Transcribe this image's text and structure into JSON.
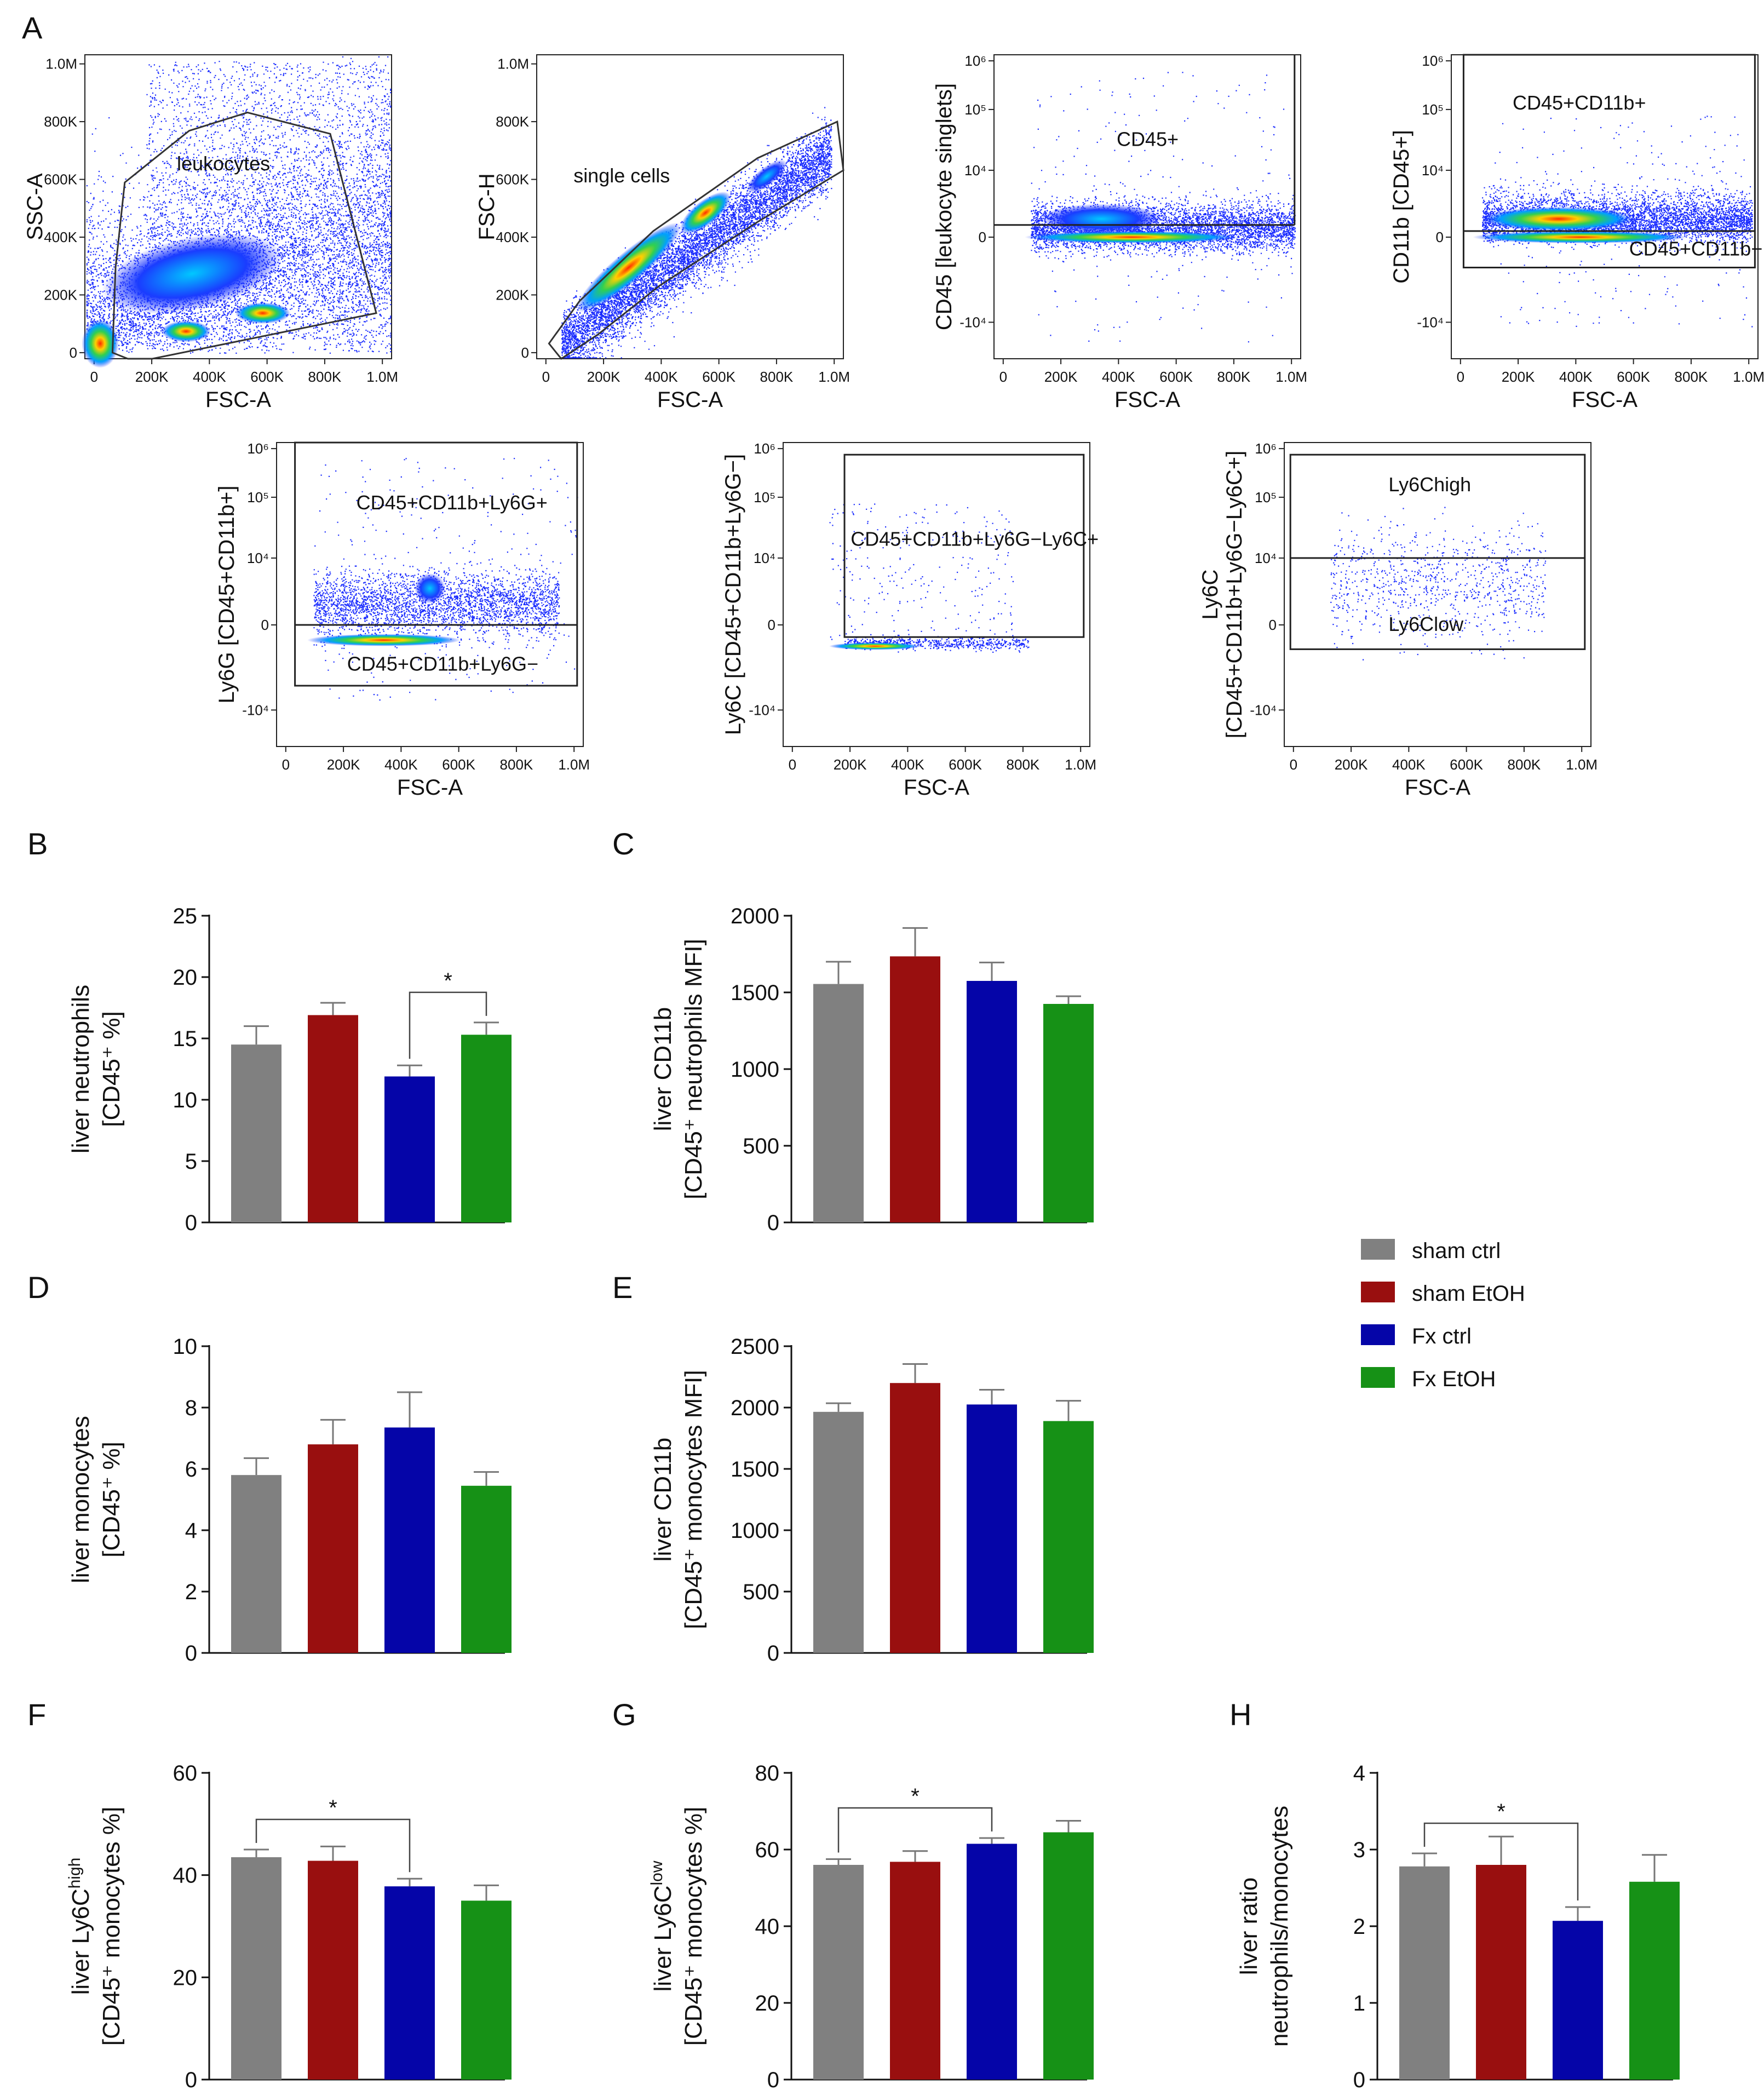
{
  "panel_labels": [
    "A",
    "B",
    "C",
    "D",
    "E",
    "F",
    "G",
    "H"
  ],
  "flow_plots": [
    {
      "id": "p1",
      "ylabel": [
        "SSC-A"
      ],
      "xlabel": "FSC-A",
      "yscale": "linear",
      "yticks": [
        "0",
        "200K",
        "400K",
        "600K",
        "800K",
        "1.0M"
      ],
      "xticks": [
        "0",
        "200K",
        "400K",
        "600K",
        "800K",
        "1.0M"
      ],
      "gates": [
        {
          "name": "leukocytes"
        }
      ]
    },
    {
      "id": "p2",
      "ylabel": [
        "FSC-H"
      ],
      "xlabel": "FSC-A",
      "yscale": "linear",
      "yticks": [
        "0",
        "200K",
        "400K",
        "600K",
        "800K",
        "1.0M"
      ],
      "xticks": [
        "0",
        "200K",
        "400K",
        "600K",
        "800K",
        "1.0M"
      ],
      "gates": [
        {
          "name": "single cells"
        }
      ]
    },
    {
      "id": "p3",
      "ylabel": [
        "CD45 [leukocyte singlets]"
      ],
      "xlabel": "FSC-A",
      "yscale": "log",
      "yticks": [
        "-10⁴",
        "0",
        "10⁴",
        "10⁵",
        "10⁶"
      ],
      "xticks": [
        "0",
        "200K",
        "400K",
        "600K",
        "800K",
        "1.0M"
      ],
      "gates": [
        {
          "name": "CD45+"
        }
      ]
    },
    {
      "id": "p4",
      "ylabel": [
        "CD11b [CD45+]"
      ],
      "xlabel": "FSC-A",
      "yscale": "log",
      "yticks": [
        "-10⁴",
        "0",
        "10⁴",
        "10⁵",
        "10⁶"
      ],
      "xticks": [
        "0",
        "200K",
        "400K",
        "600K",
        "800K",
        "1.0M"
      ],
      "gates": [
        {
          "name": "CD45+CD11b+"
        },
        {
          "name": "CD45+CD11b−"
        }
      ]
    },
    {
      "id": "p5",
      "ylabel": [
        "Ly6G [CD45+CD11b+]"
      ],
      "xlabel": "FSC-A",
      "yscale": "log",
      "yticks": [
        "-10⁴",
        "0",
        "10⁴",
        "10⁵",
        "10⁶"
      ],
      "xticks": [
        "0",
        "200K",
        "400K",
        "600K",
        "800K",
        "1.0M"
      ],
      "gates": [
        {
          "name": "CD45+CD11b+Ly6G+"
        },
        {
          "name": "CD45+CD11b+Ly6G−"
        }
      ]
    },
    {
      "id": "p6",
      "ylabel": [
        "Ly6C [CD45+CD11b+Ly6G−]"
      ],
      "xlabel": "FSC-A",
      "yscale": "log",
      "yticks": [
        "-10⁴",
        "0",
        "10⁴",
        "10⁵",
        "10⁶"
      ],
      "xticks": [
        "0",
        "200K",
        "400K",
        "600K",
        "800K",
        "1.0M"
      ],
      "gates": [
        {
          "name": "CD45+CD11b+Ly6G−Ly6C+"
        }
      ]
    },
    {
      "id": "p7",
      "ylabel": [
        "Ly6C",
        "[CD45+CD11b+Ly6G−Ly6C+]"
      ],
      "xlabel": "FSC-A",
      "yscale": "log",
      "yticks": [
        "-10⁴",
        "0",
        "10⁴",
        "10⁵",
        "10⁶"
      ],
      "xticks": [
        "0",
        "200K",
        "400K",
        "600K",
        "800K",
        "1.0M"
      ],
      "gates": [
        {
          "name": "Ly6Chigh"
        },
        {
          "name": "Ly6Clow"
        }
      ]
    }
  ],
  "colors": {
    "sham ctrl": "#808080",
    "sham EtOH": "#990f0f",
    "Fx ctrl": "#0505a8",
    "Fx EtOH": "#169116",
    "axis": "#111111",
    "gate": "#333333"
  },
  "legend": [
    "sham ctrl",
    "sham EtOH",
    "Fx ctrl",
    "Fx EtOH"
  ],
  "chart_data": [
    {
      "id": "B",
      "type": "bar",
      "categories": [
        "sham ctrl",
        "sham EtOH",
        "Fx ctrl",
        "Fx EtOH"
      ],
      "values": [
        14.5,
        16.9,
        11.9,
        15.3
      ],
      "errors": [
        1.5,
        1.0,
        0.9,
        1.0
      ],
      "ylim": [
        0,
        25
      ],
      "yticks": [
        0,
        5,
        10,
        15,
        20,
        25
      ],
      "ylabel": [
        "liver neutrophils",
        "[CD45⁺ %]"
      ],
      "significance": [
        {
          "from": 2,
          "to": 3,
          "label": "*"
        }
      ]
    },
    {
      "id": "C",
      "type": "bar",
      "categories": [
        "sham ctrl",
        "sham EtOH",
        "Fx ctrl",
        "Fx EtOH"
      ],
      "values": [
        1555,
        1735,
        1575,
        1425
      ],
      "errors": [
        145,
        185,
        120,
        50
      ],
      "ylim": [
        0,
        2000
      ],
      "yticks": [
        0,
        500,
        1000,
        1500,
        2000
      ],
      "ylabel": [
        "liver CD11b",
        "[CD45⁺ neutrophils MFI]"
      ],
      "significance": []
    },
    {
      "id": "D",
      "type": "bar",
      "categories": [
        "sham ctrl",
        "sham EtOH",
        "Fx ctrl",
        "Fx EtOH"
      ],
      "values": [
        5.8,
        6.8,
        7.35,
        5.45
      ],
      "errors": [
        0.55,
        0.8,
        1.15,
        0.45
      ],
      "ylim": [
        0,
        10
      ],
      "yticks": [
        0,
        2,
        4,
        6,
        8,
        10
      ],
      "ylabel": [
        "liver monocytes",
        "[CD45⁺ %]"
      ],
      "significance": []
    },
    {
      "id": "E",
      "type": "bar",
      "categories": [
        "sham ctrl",
        "sham EtOH",
        "Fx ctrl",
        "Fx EtOH"
      ],
      "values": [
        1965,
        2200,
        2025,
        1890
      ],
      "errors": [
        70,
        155,
        120,
        165
      ],
      "ylim": [
        0,
        2500
      ],
      "yticks": [
        0,
        500,
        1000,
        1500,
        2000,
        2500
      ],
      "ylabel": [
        "liver CD11b",
        "[CD45⁺ monocytes MFI]"
      ],
      "significance": []
    },
    {
      "id": "F",
      "type": "bar",
      "categories": [
        "sham ctrl",
        "sham EtOH",
        "Fx ctrl",
        "Fx EtOH"
      ],
      "values": [
        43.5,
        42.8,
        37.8,
        35.0
      ],
      "errors": [
        1.5,
        2.8,
        1.5,
        3.0
      ],
      "ylim": [
        0,
        60
      ],
      "yticks": [
        0,
        20,
        40,
        60
      ],
      "ylabel": [
        "liver Ly6C^high",
        "[CD45⁺ monocytes %]"
      ],
      "significance": [
        {
          "from": 0,
          "to": 2,
          "label": "*"
        }
      ]
    },
    {
      "id": "G",
      "type": "bar",
      "categories": [
        "sham ctrl",
        "sham EtOH",
        "Fx ctrl",
        "Fx EtOH"
      ],
      "values": [
        56.0,
        56.8,
        61.5,
        64.5
      ],
      "errors": [
        1.5,
        2.8,
        1.5,
        3.0
      ],
      "ylim": [
        0,
        80
      ],
      "yticks": [
        0,
        20,
        40,
        60,
        80
      ],
      "ylabel": [
        "liver Ly6C^low",
        "[CD45⁺ monocytes %]"
      ],
      "significance": [
        {
          "from": 0,
          "to": 2,
          "label": "*"
        }
      ]
    },
    {
      "id": "H",
      "type": "bar",
      "categories": [
        "sham ctrl",
        "sham EtOH",
        "Fx ctrl",
        "Fx EtOH"
      ],
      "values": [
        2.78,
        2.8,
        2.07,
        2.58
      ],
      "errors": [
        0.17,
        0.37,
        0.18,
        0.35
      ],
      "ylim": [
        0,
        4
      ],
      "yticks": [
        0,
        1,
        2,
        3,
        4
      ],
      "ylabel": [
        "liver ratio",
        "neutrophils/monocytes"
      ],
      "significance": [
        {
          "from": 0,
          "to": 2,
          "label": "*"
        }
      ]
    }
  ]
}
